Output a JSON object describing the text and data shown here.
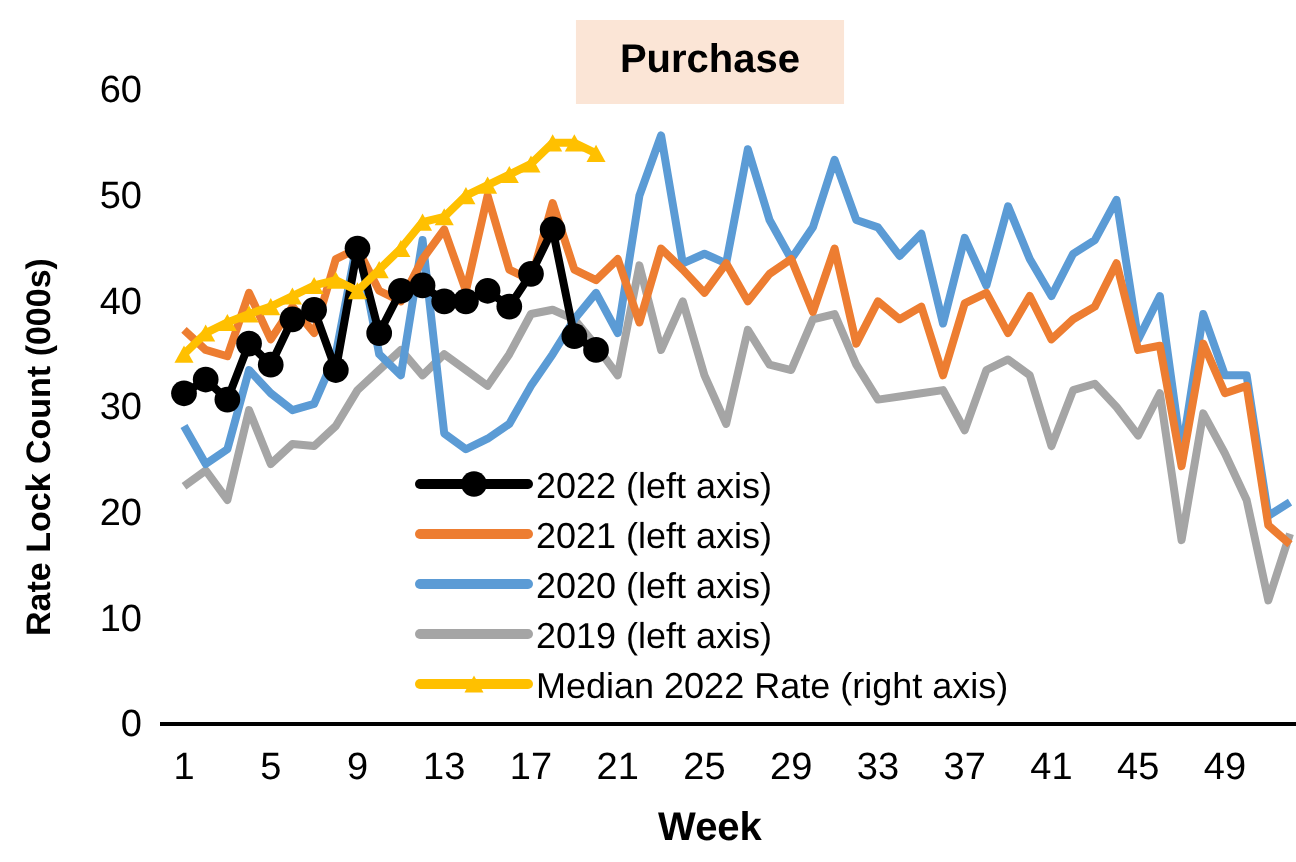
{
  "chart_data": {
    "type": "line",
    "title": "Purchase",
    "xlabel": "Week",
    "ylabel": "Rate Lock Count (000s)",
    "categories": [
      "1",
      null,
      null,
      null,
      "5",
      null,
      null,
      null,
      "9",
      null,
      null,
      null,
      "13",
      null,
      null,
      null,
      "17",
      null,
      null,
      null,
      "21",
      null,
      null,
      null,
      "25",
      null,
      null,
      null,
      "29",
      null,
      null,
      null,
      "33",
      null,
      null,
      null,
      "37",
      null,
      null,
      null,
      "41",
      null,
      null,
      null,
      "45",
      null,
      null,
      null,
      "49",
      null,
      null,
      null
    ],
    "ylim": [
      0,
      60
    ],
    "yticks": [
      0,
      10,
      20,
      30,
      40,
      50,
      60
    ],
    "grid": false,
    "legend": "bottom",
    "series": [
      {
        "name": "2022 (left axis)",
        "color": "#000000",
        "marker": "circle",
        "values": [
          31.3,
          32.6,
          30.7,
          36,
          34,
          38.3,
          39.2,
          33.5,
          45,
          37,
          41,
          41.5,
          40,
          40,
          41,
          39.5,
          42.6,
          46.8,
          36.7,
          35.4,
          null,
          null,
          null,
          null,
          null,
          null,
          null,
          null,
          null,
          null,
          null,
          null,
          null,
          null,
          null,
          null,
          null,
          null,
          null,
          null,
          null,
          null,
          null,
          null,
          null,
          null,
          null,
          null,
          null,
          null,
          null,
          null
        ]
      },
      {
        "name": "2021 (left axis)",
        "color": "#ed7d31",
        "marker": "none",
        "values": [
          37.3,
          35.4,
          34.8,
          40.8,
          36.4,
          39.5,
          37,
          44,
          45,
          41,
          40,
          44,
          46.8,
          41,
          50,
          43,
          42,
          49.3,
          43,
          42,
          44,
          38,
          45,
          43,
          40.8,
          43.6,
          40,
          42.6,
          44,
          39,
          45,
          36,
          40,
          38.3,
          39.5,
          33,
          39.8,
          40.8,
          37,
          40.5,
          36.4,
          38.3,
          39.5,
          43.6,
          35.4,
          35.8,
          24.4,
          36,
          31.3,
          32,
          18.8,
          17
        ]
      },
      {
        "name": "2020 (left axis)",
        "color": "#5b9bd5",
        "marker": "none",
        "values": [
          28.2,
          24.6,
          26,
          33.5,
          31.3,
          29.7,
          30.3,
          35,
          45.8,
          35,
          33,
          45.8,
          27.5,
          26,
          27,
          28.4,
          32,
          35,
          38.3,
          40.8,
          37,
          50,
          55.7,
          43.6,
          44.5,
          43.6,
          54.4,
          47.7,
          44,
          47,
          53.4,
          47.7,
          47,
          44.3,
          46.4,
          37.9,
          46,
          41.5,
          49,
          44,
          40.5,
          44.5,
          45.8,
          49.6,
          36.4,
          40.5,
          25.6,
          38.8,
          33,
          33,
          19.7,
          21
        ]
      },
      {
        "name": "2019 (left axis)",
        "color": "#a5a5a5",
        "marker": "none",
        "values": [
          22.5,
          24,
          21.2,
          29.7,
          24.6,
          26.5,
          26.3,
          28.2,
          31.6,
          33.5,
          35.4,
          33,
          35,
          33.5,
          32,
          35,
          38.8,
          39.2,
          38.3,
          35.8,
          33,
          43.4,
          35.4,
          40,
          33,
          28.4,
          37.3,
          34,
          33.5,
          38.3,
          38.8,
          34,
          30.7,
          31,
          31.3,
          31.6,
          27.8,
          33.5,
          34.5,
          33,
          26.3,
          31.6,
          32.2,
          30,
          27.3,
          31.3,
          17.4,
          29.4,
          25.6,
          21.2,
          11.7,
          18
        ]
      },
      {
        "name": "Median 2022 Rate (right axis)",
        "color": "#ffc000",
        "marker": "triangle",
        "values": [
          35,
          37,
          38,
          38.8,
          39.5,
          40.5,
          41.5,
          42,
          41,
          43,
          45,
          47.5,
          48,
          50,
          51,
          52,
          53,
          55,
          55,
          54,
          null,
          null,
          null,
          null,
          null,
          null,
          null,
          null,
          null,
          null,
          null,
          null,
          null,
          null,
          null,
          null,
          null,
          null,
          null,
          null,
          null,
          null,
          null,
          null,
          null,
          null,
          null,
          null,
          null,
          null,
          null,
          null
        ]
      }
    ]
  }
}
